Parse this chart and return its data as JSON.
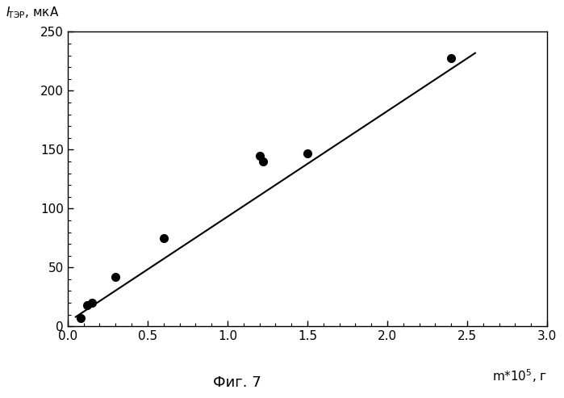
{
  "scatter_x": [
    0.08,
    0.12,
    0.15,
    0.3,
    0.6,
    1.2,
    1.22,
    1.5,
    2.4
  ],
  "scatter_y": [
    7,
    18,
    20,
    42,
    75,
    145,
    140,
    147,
    228
  ],
  "line_x": [
    0.05,
    2.55
  ],
  "line_y": [
    8,
    232
  ],
  "xlim": [
    0.0,
    3.0
  ],
  "ylim": [
    0,
    250
  ],
  "xticks": [
    0.0,
    0.5,
    1.0,
    1.5,
    2.0,
    2.5,
    3.0
  ],
  "yticks": [
    0,
    50,
    100,
    150,
    200,
    250
  ],
  "xlabel": "m*10$^5$, г",
  "ylabel_main": "I",
  "ylabel_sub": "ТЭР",
  "ylabel_unit": ", мкА",
  "caption": "Фиг. 7",
  "marker_color": "#000000",
  "line_color": "#000000",
  "bg_color": "#ffffff",
  "marker_size": 7,
  "line_width": 1.5,
  "x_minor_ticks": 5,
  "y_minor_ticks": 5
}
